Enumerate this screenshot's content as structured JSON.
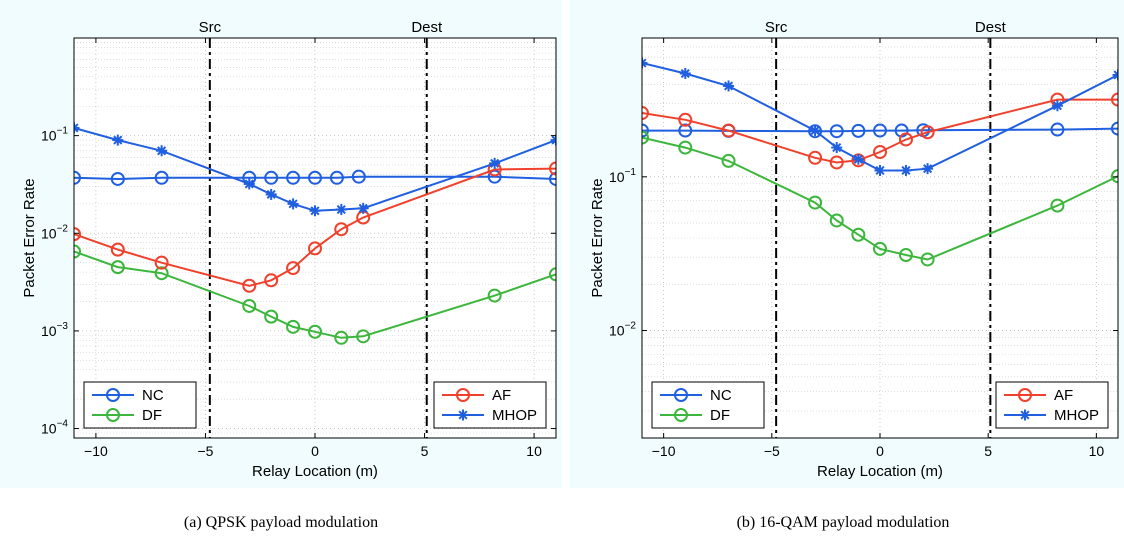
{
  "captions": [
    "(a) QPSK payload modulation",
    "(b) 16-QAM payload modulation"
  ],
  "chart_data": [
    {
      "type": "line",
      "xlabel": "Relay Location (m)",
      "ylabel": "Packet Error Rate",
      "xlim": [
        -11,
        11
      ],
      "ylim": [
        8e-05,
        1
      ],
      "yscale": "log",
      "xticks": [
        -10,
        -5,
        0,
        5,
        10
      ],
      "yticks": [
        {
          "v": 0.0001,
          "exp": "-4"
        },
        {
          "v": 0.001,
          "exp": "-3"
        },
        {
          "v": 0.01,
          "exp": "-2"
        },
        {
          "v": 0.1,
          "exp": "-1"
        }
      ],
      "grid": true,
      "vlines": [
        {
          "x": -4.8,
          "label": "Src"
        },
        {
          "x": 5.1,
          "label": "Dest"
        }
      ],
      "legends": [
        {
          "placement": "bottom-left",
          "entries": [
            "NC",
            "DF"
          ]
        },
        {
          "placement": "bottom-right",
          "entries": [
            "AF",
            "MHOP"
          ]
        }
      ],
      "series": [
        {
          "name": "NC",
          "color": "#1f5fe0",
          "marker": "circle",
          "x": [
            -11,
            -9,
            -7,
            -3,
            -2,
            -1,
            0,
            1,
            2,
            8.2,
            11
          ],
          "y": [
            0.037,
            0.036,
            0.037,
            0.037,
            0.037,
            0.037,
            0.037,
            0.037,
            0.038,
            0.038,
            0.036
          ]
        },
        {
          "name": "DF",
          "color": "#3cb63c",
          "marker": "circle",
          "x": [
            -11,
            -9,
            -7,
            -3,
            -2,
            -1,
            0,
            1.2,
            2.2,
            8.2,
            11
          ],
          "y": [
            0.0065,
            0.0045,
            0.0039,
            0.0018,
            0.0014,
            0.0011,
            0.00098,
            0.00085,
            0.00088,
            0.0023,
            0.0038
          ]
        },
        {
          "name": "AF",
          "color": "#f0412c",
          "marker": "circle",
          "x": [
            -11,
            -9,
            -7,
            -3,
            -2,
            -1,
            0,
            1.2,
            2.2,
            8.2,
            11
          ],
          "y": [
            0.0098,
            0.0068,
            0.005,
            0.0029,
            0.0033,
            0.0044,
            0.007,
            0.011,
            0.0145,
            0.045,
            0.046
          ]
        },
        {
          "name": "MHOP",
          "color": "#1f5fe0",
          "marker": "star",
          "x": [
            -11,
            -9,
            -7,
            -3,
            -2,
            -1,
            0,
            1.2,
            2.2,
            8.2,
            11
          ],
          "y": [
            0.12,
            0.09,
            0.07,
            0.032,
            0.025,
            0.02,
            0.017,
            0.0175,
            0.018,
            0.052,
            0.09
          ]
        }
      ]
    },
    {
      "type": "line",
      "xlabel": "Relay Location (m)",
      "ylabel": "Packet Error Rate",
      "xlim": [
        -11,
        11
      ],
      "ylim": [
        0.002,
        0.8
      ],
      "yscale": "log",
      "xticks": [
        -10,
        -5,
        0,
        5,
        10
      ],
      "yticks": [
        {
          "v": 0.01,
          "exp": "-2"
        },
        {
          "v": 0.1,
          "exp": "-1"
        }
      ],
      "grid": true,
      "vlines": [
        {
          "x": -4.8,
          "label": "Src"
        },
        {
          "x": 5.1,
          "label": "Dest"
        }
      ],
      "legends": [
        {
          "placement": "bottom-left",
          "entries": [
            "NC",
            "DF"
          ]
        },
        {
          "placement": "bottom-right",
          "entries": [
            "AF",
            "MHOP"
          ]
        }
      ],
      "series": [
        {
          "name": "NC",
          "color": "#1f5fe0",
          "marker": "circle",
          "x": [
            -11,
            -9,
            -7,
            -3,
            -2,
            -1,
            0,
            1,
            2,
            8.2,
            11
          ],
          "y": [
            0.2,
            0.2,
            0.199,
            0.198,
            0.198,
            0.199,
            0.2,
            0.2,
            0.201,
            0.203,
            0.206
          ]
        },
        {
          "name": "DF",
          "color": "#3cb63c",
          "marker": "circle",
          "x": [
            -11,
            -9,
            -7,
            -3,
            -2,
            -1,
            0,
            1.2,
            2.2,
            8.2,
            11
          ],
          "y": [
            0.18,
            0.155,
            0.127,
            0.068,
            0.052,
            0.042,
            0.034,
            0.031,
            0.029,
            0.065,
            0.101
          ]
        },
        {
          "name": "AF",
          "color": "#f0412c",
          "marker": "circle",
          "x": [
            -11,
            -9,
            -7,
            -3,
            -2,
            -1,
            0,
            1.2,
            2.2,
            8.2,
            11
          ],
          "y": [
            0.26,
            0.235,
            0.2,
            0.133,
            0.124,
            0.128,
            0.145,
            0.175,
            0.195,
            0.318,
            0.318
          ]
        },
        {
          "name": "MHOP",
          "color": "#1f5fe0",
          "marker": "star",
          "x": [
            -11,
            -9,
            -7,
            -3,
            -2,
            -1,
            0,
            1.2,
            2.2,
            8.2,
            11
          ],
          "y": [
            0.55,
            0.47,
            0.39,
            0.2,
            0.155,
            0.13,
            0.11,
            0.11,
            0.113,
            0.29,
            0.46
          ]
        }
      ]
    }
  ]
}
